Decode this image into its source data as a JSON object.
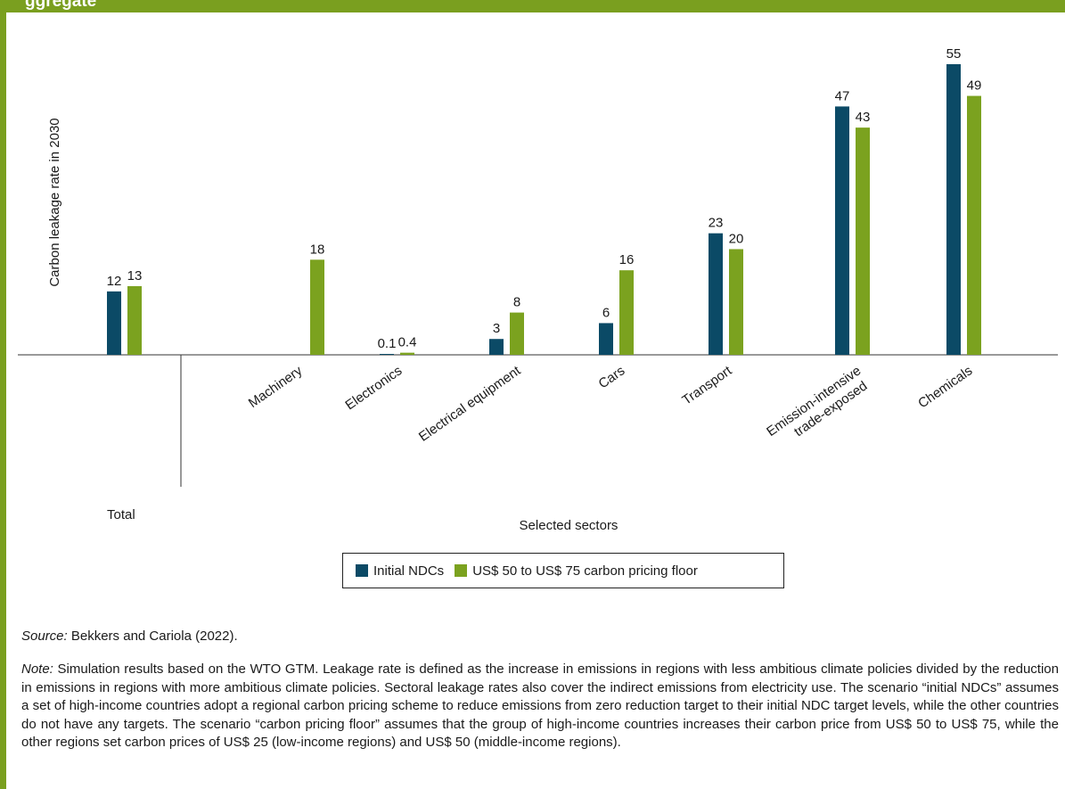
{
  "colors": {
    "accent": "#7a9f1f",
    "initial_ndcs": "#0b4a66",
    "pricing_floor": "#7ba21f"
  },
  "header": {
    "title_fragment": "ggregate"
  },
  "chart_data": {
    "type": "bar",
    "ylabel": "Carbon leakage rate in 2030",
    "xlabel": "Selected sectors",
    "categories": [
      "Total",
      "Machinery",
      "Electronics",
      "Electrical equipment",
      "Cars",
      "Transport",
      "Emission-intensive trade-exposed",
      "Chemicals"
    ],
    "category_labels": [
      [
        "Total"
      ],
      [
        "Machinery"
      ],
      [
        "Electronics"
      ],
      [
        "Electrical equipment"
      ],
      [
        "Cars"
      ],
      [
        "Transport"
      ],
      [
        "Emission-intensive",
        "trade-exposed"
      ],
      [
        "Chemicals"
      ]
    ],
    "series": [
      {
        "name": "Initial NDCs",
        "values": [
          12,
          null,
          0.1,
          3,
          6,
          23,
          47,
          55
        ],
        "labels": [
          "12",
          "",
          "0.1",
          "3",
          "6",
          "23",
          "47",
          "55"
        ]
      },
      {
        "name": "US$ 50 to US$ 75 carbon pricing floor",
        "values": [
          13,
          18,
          0.4,
          8,
          16,
          20,
          43,
          49
        ],
        "labels": [
          "13",
          "18",
          "0.4",
          "8",
          "16",
          "20",
          "43",
          "49"
        ]
      }
    ],
    "ylim": [
      0,
      55
    ],
    "grid": false,
    "legend_position": "bottom-center"
  },
  "footer": {
    "source_label": "Source:",
    "source_text": " Bekkers and Cariola (2022).",
    "note_label": "Note:",
    "note_text": " Simulation results based on the WTO GTM. Leakage rate is defined as the increase in emissions in regions with less ambitious climate policies divided by the reduction in emissions in regions with more ambitious climate policies. Sectoral leakage rates also cover the indirect emissions from electricity use. The scenario “initial NDCs” assumes a set of high-income countries adopt a regional carbon pricing scheme to reduce emissions from zero reduction target to their initial NDC target levels, while the other countries do not have any targets. The scenario “carbon pricing floor” assumes that the group of high-income countries  increases their carbon price from US$ 50 to US$ 75, while the other regions set carbon prices of US$ 25 (low-income regions) and US$ 50 (middle-income regions)."
  }
}
